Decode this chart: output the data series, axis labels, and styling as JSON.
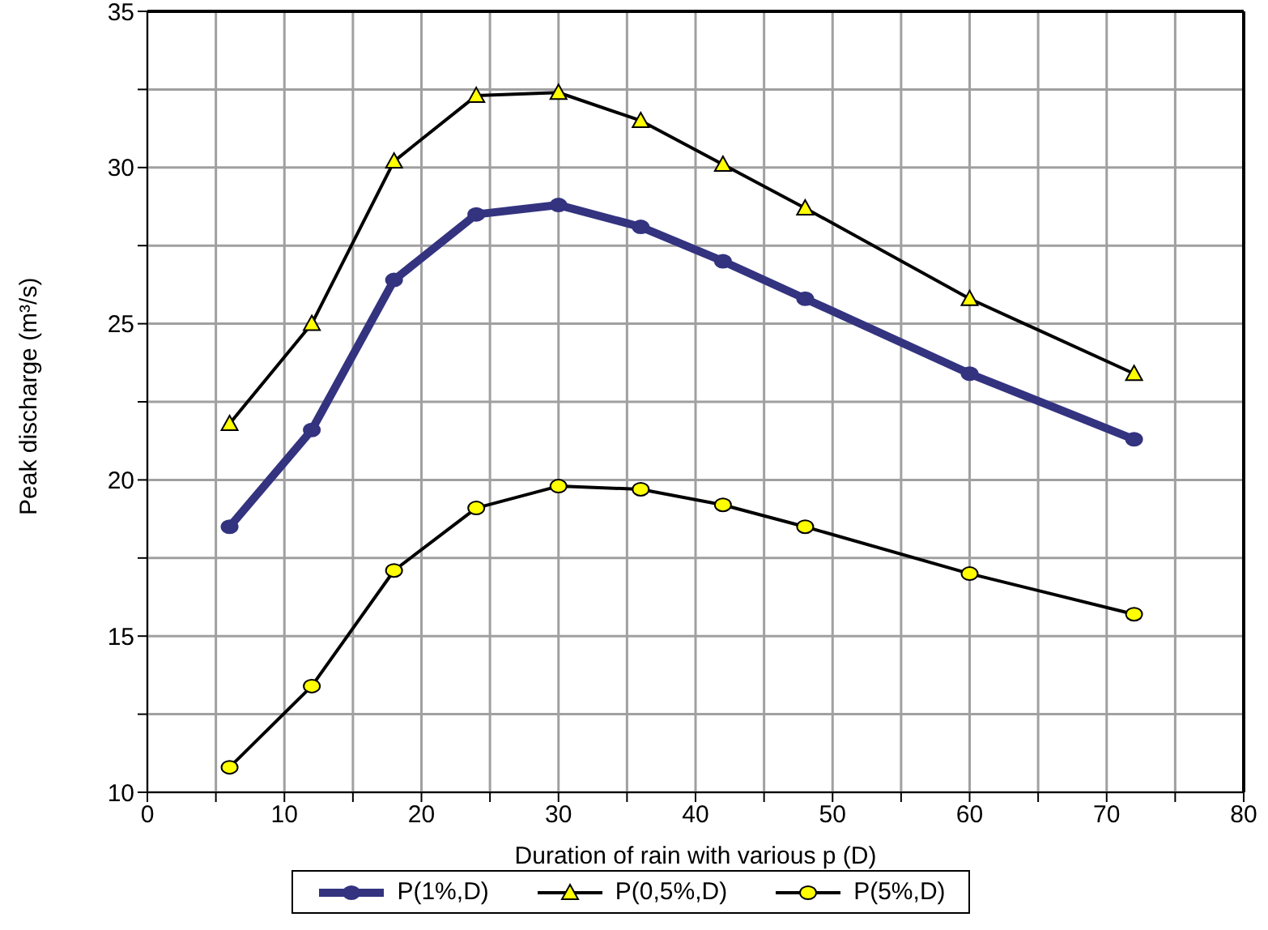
{
  "chart_data": {
    "type": "line",
    "xlabel": "Duration of rain with various p (D)",
    "ylabel": "Peak discharge (m³/s)",
    "x": [
      6,
      12,
      18,
      24,
      30,
      36,
      42,
      48,
      60,
      72
    ],
    "xlim": [
      0,
      80
    ],
    "xticks": [
      0,
      {
        "value": 5,
        "label": null
      },
      10,
      {
        "value": 15,
        "label": null
      },
      20,
      {
        "value": 25,
        "label": null
      },
      30,
      {
        "value": 35,
        "label": null
      },
      40,
      {
        "value": 45,
        "label": null
      },
      50,
      {
        "value": 55,
        "label": null
      },
      60,
      {
        "value": 65,
        "label": null
      },
      70,
      {
        "value": 75,
        "label": null
      },
      80
    ],
    "ylim": [
      10,
      35
    ],
    "yticks": [
      10,
      {
        "value": 12.5,
        "label": null
      },
      15,
      {
        "value": 17.5,
        "label": null
      },
      20,
      {
        "value": 22.5,
        "label": null
      },
      25,
      {
        "value": 27.5,
        "label": null
      },
      30,
      {
        "value": 32.5,
        "label": null
      },
      35
    ],
    "grid": true,
    "legend": "bottom",
    "series": [
      {
        "name": "P(1%,D)",
        "color": "#333380",
        "marker": "circle",
        "values": [
          18.5,
          21.6,
          26.4,
          28.5,
          28.8,
          28.1,
          27.0,
          25.8,
          23.4,
          21.3
        ]
      },
      {
        "name": "P(0,5%,D)",
        "color": "#000000",
        "marker": "triangle",
        "values": [
          21.8,
          25.0,
          30.2,
          32.3,
          32.4,
          31.5,
          30.1,
          28.7,
          25.8,
          23.4
        ]
      },
      {
        "name": "P(5%,D)",
        "color": "#000000",
        "marker": "circle",
        "values": [
          10.8,
          13.4,
          17.1,
          19.1,
          19.8,
          19.7,
          19.2,
          18.5,
          17.0,
          15.7
        ]
      }
    ]
  }
}
